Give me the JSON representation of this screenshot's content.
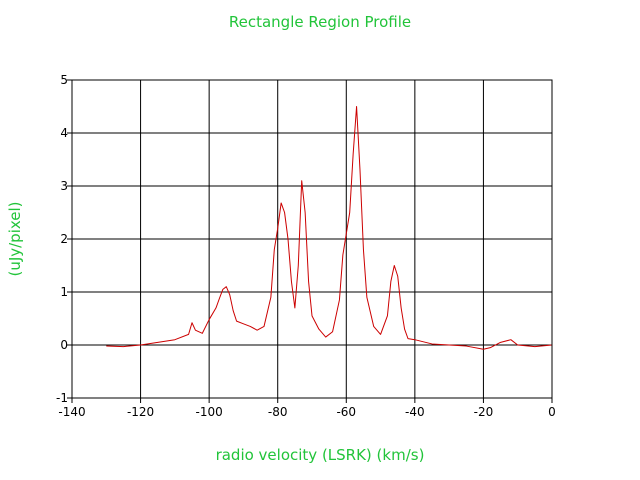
{
  "chart_data": {
    "type": "line",
    "title": "Rectangle Region Profile",
    "xlabel": "radio velocity (LSRK) (km/s)",
    "ylabel": "(uJy/pixel)",
    "xlim": [
      -140,
      0
    ],
    "ylim": [
      -1,
      5
    ],
    "x_ticks": [
      -140,
      -120,
      -100,
      -80,
      -60,
      -40,
      -20,
      0
    ],
    "y_ticks": [
      -1,
      0,
      1,
      2,
      3,
      4,
      5
    ],
    "grid": true,
    "legend": "none",
    "colors": {
      "text": "#22c43a",
      "series": "#cc0000",
      "grid": "#000000",
      "axes": "#000000"
    },
    "series": [
      {
        "x": [
          -130,
          -125,
          -120,
          -115,
          -110,
          -106,
          -105,
          -104,
          -102,
          -100,
          -98,
          -97,
          -96,
          -95,
          -94,
          -93,
          -92,
          -90,
          -88,
          -86,
          -84,
          -82,
          -81,
          -80,
          -79,
          -78,
          -77,
          -76,
          -75,
          -74,
          -73,
          -72,
          -71,
          -70,
          -68,
          -66,
          -64,
          -62,
          -61,
          -60,
          -59,
          -58,
          -57,
          -56,
          -55,
          -54,
          -52,
          -50,
          -48,
          -47,
          -46,
          -45,
          -44,
          -43,
          -42,
          -40,
          -35,
          -30,
          -25,
          -20,
          -18,
          -15,
          -12,
          -10,
          -5,
          0
        ],
        "y": [
          -0.02,
          -0.03,
          0.0,
          0.05,
          0.1,
          0.2,
          0.42,
          0.28,
          0.22,
          0.48,
          0.7,
          0.88,
          1.05,
          1.1,
          0.95,
          0.65,
          0.45,
          0.4,
          0.35,
          0.28,
          0.35,
          0.9,
          1.8,
          2.2,
          2.68,
          2.5,
          2.0,
          1.2,
          0.7,
          1.5,
          3.1,
          2.5,
          1.2,
          0.55,
          0.3,
          0.15,
          0.25,
          0.85,
          1.7,
          2.1,
          2.5,
          3.6,
          4.5,
          3.3,
          1.8,
          0.9,
          0.35,
          0.2,
          0.55,
          1.2,
          1.5,
          1.3,
          0.7,
          0.3,
          0.12,
          0.1,
          0.02,
          0.0,
          -0.02,
          -0.08,
          -0.05,
          0.05,
          0.1,
          0.0,
          -0.03,
          0.0
        ]
      }
    ]
  }
}
